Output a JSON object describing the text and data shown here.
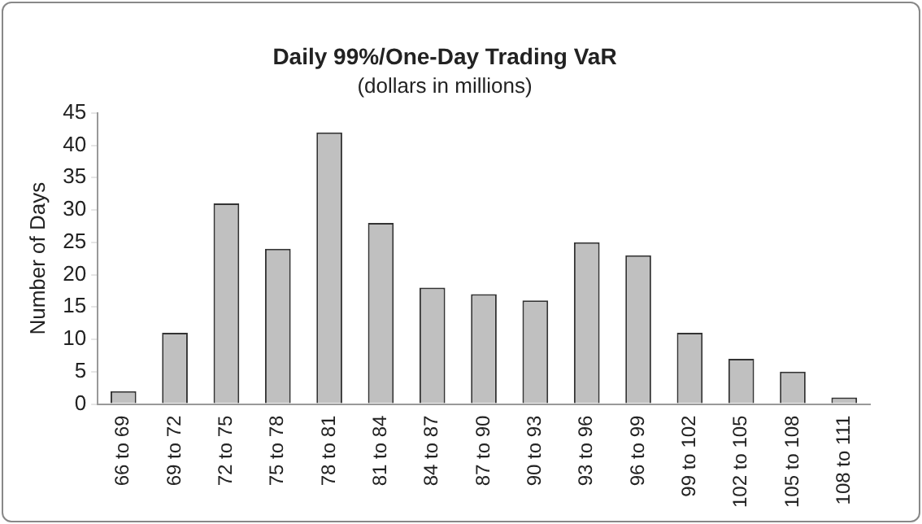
{
  "chart_data": {
    "type": "bar",
    "title": "Daily 99%/One-Day Trading VaR",
    "subtitle": "(dollars in millions)",
    "ylabel": "Number of Days",
    "categories": [
      "66 to 69",
      "69 to 72",
      "72 to 75",
      "75 to 78",
      "78 to 81",
      "81 to 84",
      "84 to 87",
      "87 to 90",
      "90 to 93",
      "93 to 96",
      "96 to 99",
      "99 to 102",
      "102 to 105",
      "105 to 108",
      "108 to 111"
    ],
    "values": [
      2,
      11,
      31,
      24,
      42,
      28,
      18,
      17,
      16,
      25,
      23,
      11,
      7,
      5,
      1
    ],
    "color": "#c0c0c0",
    "ylim": [
      0,
      45
    ],
    "yticks": [
      0,
      5,
      10,
      15,
      20,
      25,
      30,
      35,
      40,
      45
    ],
    "grid": false,
    "legend": false
  }
}
